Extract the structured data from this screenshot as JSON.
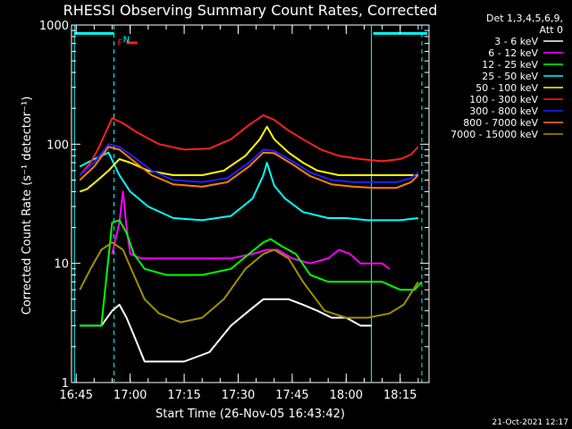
{
  "chart_data": {
    "type": "line",
    "title": "RHESSI Observing Summary Count Rates, Corrected",
    "xlabel": "Start Time (26-Nov-05 16:43:42)",
    "ylabel": "Corrected Count Rate (s⁻¹ detector⁻¹)",
    "y_scale": "log",
    "ylim": [
      1,
      1000
    ],
    "y_ticks": [
      {
        "value": 1,
        "label": "1"
      },
      {
        "value": 10,
        "label": "10"
      },
      {
        "value": 100,
        "label": "100"
      },
      {
        "value": 1000,
        "label": "1000"
      }
    ],
    "xlim": [
      "16:43:42",
      "18:23:00"
    ],
    "x_ticks": [
      {
        "time": "16:45",
        "label": "16:45"
      },
      {
        "time": "17:00",
        "label": "17:00"
      },
      {
        "time": "17:15",
        "label": "17:15"
      },
      {
        "time": "17:30",
        "label": "17:30"
      },
      {
        "time": "17:45",
        "label": "17:45"
      },
      {
        "time": "18:00",
        "label": "18:00"
      },
      {
        "time": "18:15",
        "label": "18:15"
      }
    ],
    "legend": {
      "placement": "right",
      "header": [
        "Det 1,3,4,5,6,9,",
        "Att 0"
      ]
    },
    "footer": "21-Oct-2021 12:17",
    "night_boundaries": [
      "16:44:30",
      "18:07:00"
    ],
    "saa_boundaries": [
      "16:55:30",
      "18:21:00"
    ],
    "flags": [
      {
        "label": "F",
        "color": "#ff2020",
        "start": "16:56:30",
        "end": "16:58:30",
        "y": 800
      },
      {
        "label": "N",
        "color": "#00ffff",
        "start": "16:58:00",
        "end": "16:58:00",
        "y": 850
      }
    ],
    "flag_bars": [
      {
        "color": "#00ffff",
        "start": "16:44:30",
        "end": "16:55:30",
        "y": 850
      },
      {
        "color": "#00ffff",
        "start": "18:07:30",
        "end": "18:22:30",
        "y": 850
      }
    ],
    "series": [
      {
        "name": "3 - 6 keV",
        "color": "#ffffff",
        "x": [
          "16:46",
          "16:50",
          "16:52",
          "16:55",
          "16:57",
          "16:59",
          "17:01",
          "17:04",
          "17:10",
          "17:15",
          "17:22",
          "17:28",
          "17:33",
          "17:37",
          "17:41",
          "17:44",
          "17:48",
          "17:52",
          "17:56",
          "18:00",
          "18:04",
          "18:07"
        ],
        "y": [
          3,
          3,
          3,
          4,
          4.5,
          3.5,
          2.5,
          1.5,
          1.5,
          1.5,
          1.8,
          3,
          4,
          5,
          5,
          5,
          4.5,
          4,
          3.5,
          3.5,
          3,
          3
        ]
      },
      {
        "name": "6 - 12 keV",
        "color": "#ff00ff",
        "x": [
          "16:55",
          "16:57",
          "16:58",
          "16:59",
          "17:00",
          "17:03",
          "17:10",
          "17:20",
          "17:28",
          "17:34",
          "17:38",
          "17:41",
          "17:45",
          "17:50",
          "17:55",
          "17:58",
          "18:01",
          "18:04",
          "18:07",
          "18:10",
          "18:12"
        ],
        "y": [
          12,
          22,
          40,
          20,
          12,
          11,
          11,
          11,
          11,
          12,
          13,
          13,
          11,
          10,
          11,
          13,
          12,
          10,
          10,
          10,
          9
        ]
      },
      {
        "name": "12 - 25 keV",
        "color": "#00ff00",
        "x": [
          "16:46",
          "16:52",
          "16:55",
          "16:57",
          "16:59",
          "17:01",
          "17:04",
          "17:10",
          "17:20",
          "17:28",
          "17:33",
          "17:37",
          "17:39",
          "17:42",
          "17:46",
          "17:50",
          "17:55",
          "18:00",
          "18:05",
          "18:10",
          "18:15",
          "18:19",
          "18:21"
        ],
        "y": [
          3,
          3,
          22,
          23,
          18,
          12,
          9,
          8,
          8,
          9,
          12,
          15,
          16,
          14,
          12,
          8,
          7,
          7,
          7,
          7,
          6,
          6,
          7
        ]
      },
      {
        "name": "25 - 50 keV",
        "color": "#00ffff",
        "x": [
          "16:46",
          "16:50",
          "16:54",
          "16:57",
          "17:00",
          "17:05",
          "17:12",
          "17:20",
          "17:28",
          "17:34",
          "17:37",
          "17:38",
          "17:40",
          "17:43",
          "17:48",
          "17:55",
          "18:00",
          "18:06",
          "18:10",
          "18:15",
          "18:20"
        ],
        "y": [
          65,
          75,
          85,
          55,
          40,
          30,
          24,
          23,
          25,
          35,
          55,
          70,
          45,
          35,
          27,
          24,
          24,
          23,
          23,
          23,
          24
        ]
      },
      {
        "name": "50 - 100 keV",
        "color": "#ffff00",
        "x": [
          "16:46",
          "16:48",
          "16:51",
          "16:54",
          "16:57",
          "17:00",
          "17:05",
          "17:12",
          "17:20",
          "17:26",
          "17:32",
          "17:36",
          "17:38",
          "17:40",
          "17:44",
          "17:48",
          "17:52",
          "17:58",
          "18:04",
          "18:10",
          "18:15",
          "18:20"
        ],
        "y": [
          40,
          42,
          50,
          60,
          75,
          70,
          60,
          55,
          55,
          60,
          80,
          110,
          140,
          110,
          85,
          70,
          60,
          55,
          55,
          55,
          55,
          55
        ]
      },
      {
        "name": "100 - 300 keV",
        "color": "#ff2020",
        "x": [
          "16:46",
          "16:49",
          "16:51",
          "16:55",
          "16:58",
          "17:02",
          "17:08",
          "17:15",
          "17:22",
          "17:28",
          "17:33",
          "17:37",
          "17:40",
          "17:44",
          "17:48",
          "17:53",
          "17:58",
          "18:04",
          "18:10",
          "18:15",
          "18:18",
          "18:20"
        ],
        "y": [
          55,
          70,
          90,
          165,
          150,
          125,
          100,
          90,
          92,
          110,
          145,
          175,
          160,
          130,
          110,
          90,
          80,
          75,
          72,
          75,
          82,
          95
        ]
      },
      {
        "name": "300 - 800 keV",
        "color": "#2020ff",
        "x": [
          "16:46",
          "16:50",
          "16:54",
          "16:57",
          "17:01",
          "17:06",
          "17:12",
          "17:20",
          "17:27",
          "17:33",
          "17:37",
          "17:40",
          "17:45",
          "17:50",
          "17:56",
          "18:02",
          "18:08",
          "18:14",
          "18:18",
          "18:20"
        ],
        "y": [
          55,
          70,
          100,
          95,
          78,
          60,
          50,
          48,
          52,
          70,
          90,
          88,
          72,
          58,
          50,
          48,
          48,
          48,
          52,
          58
        ]
      },
      {
        "name": "800 - 7000 keV",
        "color": "#ff8000",
        "x": [
          "16:46",
          "16:50",
          "16:54",
          "16:57",
          "17:01",
          "17:06",
          "17:12",
          "17:20",
          "17:27",
          "17:33",
          "17:37",
          "17:40",
          "17:45",
          "17:50",
          "17:56",
          "18:02",
          "18:08",
          "18:14",
          "18:18",
          "18:20"
        ],
        "y": [
          50,
          65,
          95,
          90,
          72,
          55,
          46,
          44,
          48,
          65,
          85,
          84,
          68,
          54,
          46,
          44,
          43,
          43,
          48,
          55
        ]
      },
      {
        "name": "7000 - 15000 keV",
        "color": "#a09000",
        "x": [
          "16:46",
          "16:49",
          "16:52",
          "16:55",
          "16:58",
          "17:01",
          "17:04",
          "17:08",
          "17:14",
          "17:20",
          "17:26",
          "17:32",
          "17:37",
          "17:40",
          "17:44",
          "17:48",
          "17:54",
          "18:00",
          "18:06",
          "18:12",
          "18:16",
          "18:20"
        ],
        "y": [
          6,
          9,
          13,
          15,
          13,
          8,
          5,
          3.8,
          3.2,
          3.5,
          5,
          9,
          12,
          13,
          11,
          7,
          4,
          3.5,
          3.5,
          3.8,
          4.5,
          7
        ]
      }
    ]
  }
}
